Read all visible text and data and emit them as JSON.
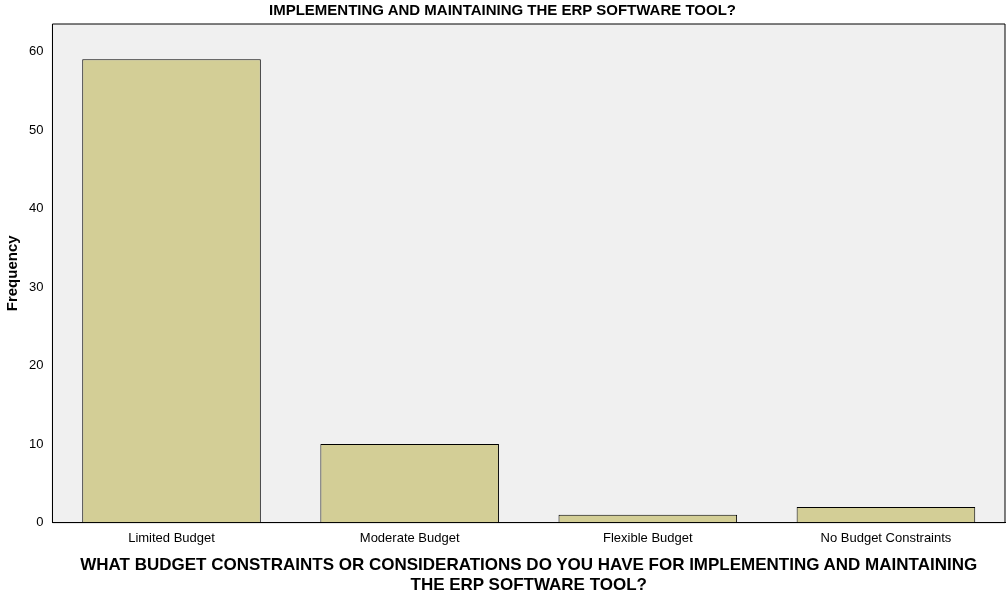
{
  "chart_data": {
    "type": "bar",
    "title": "IMPLEMENTING AND MAINTAINING THE ERP SOFTWARE TOOL?",
    "xlabel": "WHAT BUDGET CONSTRAINTS OR CONSIDERATIONS DO YOU HAVE FOR IMPLEMENTING AND MAINTAINING THE ERP SOFTWARE TOOL?",
    "ylabel": "Frequency",
    "categories": [
      "Limited Budget",
      "Moderate Budget",
      "Flexible Budget",
      "No Budget Constraints"
    ],
    "values": [
      59,
      10,
      1,
      2
    ],
    "color": "#d3ce96",
    "ylim": [
      0,
      63.5
    ],
    "yticks": [
      0,
      10,
      20,
      30,
      40,
      50,
      60
    ],
    "grid": false,
    "legend": false
  }
}
